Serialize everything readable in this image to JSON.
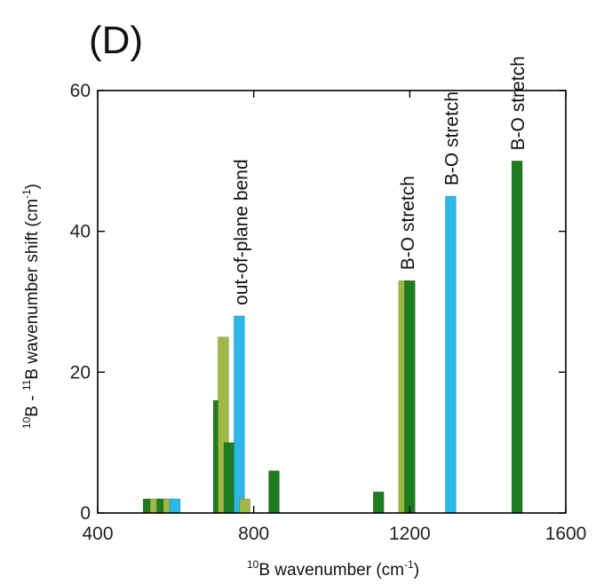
{
  "panel_label": "(D)",
  "chart_data": {
    "type": "bar",
    "xlabel": {
      "sup": "10",
      "main": "B wavenumber (cm",
      "exp": "-1",
      "end": ")"
    },
    "ylabel": {
      "sup1": "10",
      "a": "B - ",
      "sup2": "11",
      "b": "B wavenumber shift (cm",
      "exp": "-1",
      "end": ")"
    },
    "xlim": [
      400,
      1600
    ],
    "ylim": [
      0,
      60
    ],
    "xticks": [
      400,
      800,
      1200,
      1600
    ],
    "yticks": [
      0,
      20,
      40,
      60
    ],
    "colors": {
      "dark": "#1e7d1e",
      "olive": "#9db844",
      "cyan": "#2cb8e6"
    },
    "bars": [
      {
        "x": 530,
        "y": 2,
        "color": "dark"
      },
      {
        "x": 548,
        "y": 2,
        "color": "olive"
      },
      {
        "x": 565,
        "y": 2,
        "color": "dark"
      },
      {
        "x": 582,
        "y": 2,
        "color": "olive"
      },
      {
        "x": 598,
        "y": 2,
        "color": "cyan"
      },
      {
        "x": 710,
        "y": 16,
        "color": "dark"
      },
      {
        "x": 722,
        "y": 25,
        "color": "olive"
      },
      {
        "x": 737,
        "y": 10,
        "color": "dark"
      },
      {
        "x": 763,
        "y": 28,
        "color": "cyan"
      },
      {
        "x": 777,
        "y": 2,
        "color": "olive"
      },
      {
        "x": 852,
        "y": 6,
        "color": "dark"
      },
      {
        "x": 1120,
        "y": 3,
        "color": "dark"
      },
      {
        "x": 1185,
        "y": 33,
        "color": "olive"
      },
      {
        "x": 1200,
        "y": 33,
        "color": "dark"
      },
      {
        "x": 1305,
        "y": 45,
        "color": "cyan"
      },
      {
        "x": 1475,
        "y": 50,
        "color": "dark"
      }
    ],
    "annotations": [
      {
        "text": "out-of-plane bend",
        "x": 765,
        "y": 29.5
      },
      {
        "text": "B-O stretch",
        "x": 1192,
        "y": 34.5
      },
      {
        "text": "B-O stretch",
        "x": 1305,
        "y": 46.5
      },
      {
        "text": "B-O stretch",
        "x": 1475,
        "y": 51.5
      }
    ]
  }
}
